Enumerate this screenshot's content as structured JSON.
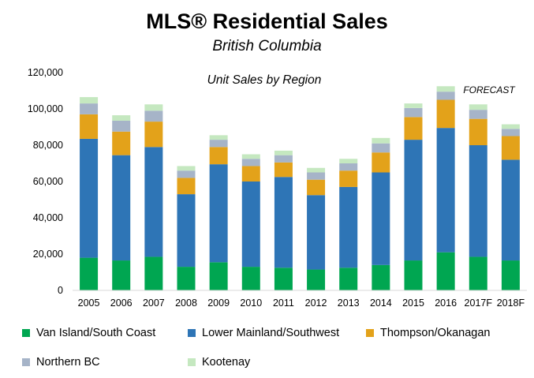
{
  "chart_data": {
    "type": "bar",
    "stacked": true,
    "title": "MLS® Residential Sales",
    "subtitle": "British Columbia",
    "inner_title": "Unit Sales by Region",
    "annotation": "FORECAST",
    "categories": [
      "2005",
      "2006",
      "2007",
      "2008",
      "2009",
      "2010",
      "2011",
      "2012",
      "2013",
      "2014",
      "2015",
      "2016",
      "2017F",
      "2018F"
    ],
    "ylim": [
      0,
      120000
    ],
    "yticks": [
      0,
      20000,
      40000,
      60000,
      80000,
      100000,
      120000
    ],
    "ytick_labels": [
      "0",
      "20,000",
      "40,000",
      "60,000",
      "80,000",
      "100,000",
      "120,000"
    ],
    "gridlines": false,
    "legend_position": "bottom",
    "series": [
      {
        "name": "Van Island/South Coast",
        "color": "#00a651",
        "values": [
          18000,
          16500,
          18500,
          13000,
          15500,
          13000,
          12500,
          11500,
          12500,
          14000,
          16500,
          21000,
          18500,
          16500
        ]
      },
      {
        "name": "Lower Mainland/Southwest",
        "color": "#2e75b6",
        "values": [
          65500,
          58000,
          60500,
          40000,
          54000,
          47000,
          50000,
          41000,
          44500,
          51000,
          66500,
          68500,
          61500,
          55500
        ]
      },
      {
        "name": "Thompson/Okanagan",
        "color": "#e3a21a",
        "values": [
          13500,
          13000,
          14000,
          9000,
          9500,
          8500,
          8000,
          8500,
          9000,
          11000,
          12500,
          15500,
          14500,
          13000
        ]
      },
      {
        "name": "Northern BC",
        "color": "#a6b4c8",
        "values": [
          6000,
          6000,
          6000,
          4000,
          4000,
          4000,
          4000,
          4000,
          4000,
          5000,
          5000,
          4500,
          5000,
          4000
        ]
      },
      {
        "name": "Kootenay",
        "color": "#c5e8c0",
        "values": [
          3500,
          3000,
          3500,
          2500,
          2500,
          2500,
          2500,
          2500,
          2500,
          3000,
          2500,
          3000,
          3000,
          2500
        ]
      }
    ]
  }
}
